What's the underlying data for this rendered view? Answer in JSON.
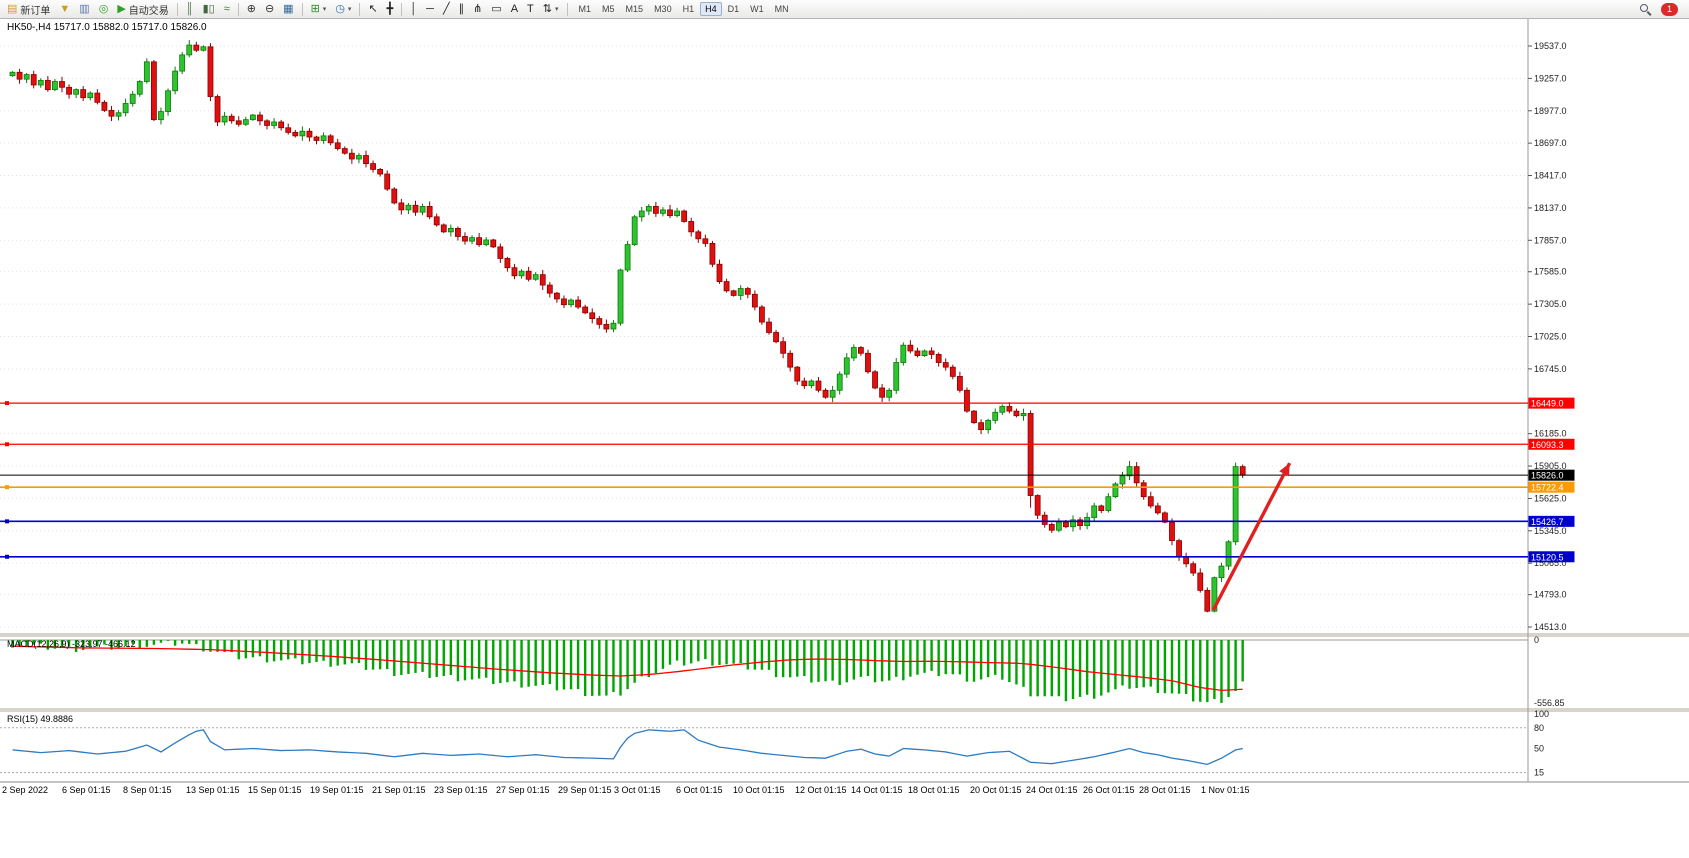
{
  "toolbar": {
    "buttons": [
      {
        "name": "new-order-button",
        "glyph": "▤",
        "color": "#d49a2a",
        "label": "新订单"
      },
      {
        "name": "funnel-icon-button",
        "glyph": "▼",
        "color": "#c8a020"
      },
      {
        "name": "printer-icon-button",
        "glyph": "▥",
        "color": "#5577aa"
      },
      {
        "name": "refresh-icon-button",
        "glyph": "◎",
        "color": "#33a033"
      },
      {
        "name": "autotrade-button",
        "glyph": "▶",
        "color": "#2e9e2e",
        "label": "自动交易"
      },
      {
        "sep": true
      },
      {
        "name": "bar-chart-button",
        "glyph": "║",
        "color": "#557755"
      },
      {
        "name": "candlestick-button",
        "glyph": "▮▯",
        "color": "#446644"
      },
      {
        "name": "line-chart-button",
        "glyph": "≈",
        "color": "#447744"
      },
      {
        "sep": true
      },
      {
        "name": "zoom-in-button",
        "glyph": "⊕",
        "color": "#333333"
      },
      {
        "name": "zoom-out-button",
        "glyph": "⊖",
        "color": "#333333"
      },
      {
        "name": "tile-windows-button",
        "glyph": "▦",
        "color": "#336699"
      },
      {
        "sep": true
      },
      {
        "name": "indicators-button",
        "glyph": "⊞",
        "color": "#2e8b2e",
        "caret": true
      },
      {
        "name": "periods-button",
        "glyph": "◷",
        "color": "#2e6bb0",
        "caret": true
      },
      {
        "sep": true
      },
      {
        "name": "cursor-button",
        "glyph": "↖",
        "color": "#222222"
      },
      {
        "name": "crosshair-button",
        "glyph": "╋",
        "color": "#222222"
      },
      {
        "sep": true
      },
      {
        "name": "vertical-line-button",
        "glyph": "│",
        "color": "#222222"
      },
      {
        "name": "horizontal-line-button",
        "glyph": "─",
        "color": "#222222"
      },
      {
        "name": "trendline-button",
        "glyph": "╱",
        "color": "#222222"
      },
      {
        "name": "equidistant-channel-button",
        "glyph": "∥",
        "color": "#222222"
      },
      {
        "name": "fibonacci-button",
        "glyph": "⋔",
        "color": "#222222"
      },
      {
        "name": "shapes-button",
        "glyph": "▭",
        "color": "#222222"
      },
      {
        "name": "text-button",
        "glyph": "A",
        "color": "#222222"
      },
      {
        "name": "label-button",
        "glyph": "T",
        "color": "#222222"
      },
      {
        "name": "arrows-button",
        "glyph": "⇅",
        "color": "#222222",
        "caret": true
      },
      {
        "sep": true
      }
    ],
    "timeframes": [
      "M1",
      "M5",
      "M15",
      "M30",
      "H1",
      "H4",
      "D1",
      "W1",
      "MN"
    ],
    "active_timeframe": "H4",
    "notification_count": "1"
  },
  "chart": {
    "symbol_tf": "HK50-,H4",
    "ohlc_text": "15717.0 15882.0 15717.0 15826.0"
  },
  "chart_data": {
    "type": "candlestick",
    "title": "HK50- H4 chart with MACD and RSI",
    "symbol": "HK50-",
    "timeframe": "H4",
    "current_bar": {
      "open": 15717.0,
      "high": 15882.0,
      "low": 15717.0,
      "close": 15826.0
    },
    "colors": {
      "up": "#2fc42f",
      "up_stroke": "#0a7a0a",
      "down": "#e01010",
      "down_stroke": "#8a0000",
      "hist": "#00a600",
      "signal": "#ff0000",
      "rsi": "#2e7bc4",
      "arrow": "#e02020"
    },
    "price_axis": {
      "ticks": [
        19537.0,
        19257.0,
        18977.0,
        18697.0,
        18417.0,
        18137.0,
        17857.0,
        17585.0,
        17305.0,
        17025.0,
        16745.0,
        16185.0,
        15905.0,
        15625.0,
        15345.0,
        15065.0,
        14793.0,
        14513.0
      ]
    },
    "hlines": [
      {
        "price": 16449.0,
        "label": "16449.0",
        "color": "#ff0000",
        "width": 1.2
      },
      {
        "price": 16093.3,
        "label": "16093.3",
        "color": "#ff0000",
        "width": 1.2
      },
      {
        "price": 15826.0,
        "label": "15826.0",
        "color": "#000000",
        "width": 1.0,
        "current": true
      },
      {
        "price": 15722.4,
        "label": "15722.4",
        "color": "#ff9900",
        "width": 1.6
      },
      {
        "price": 15426.7,
        "label": "15426.7",
        "color": "#0000cc",
        "width": 1.6
      },
      {
        "price": 15120.5,
        "label": "15120.5",
        "color": "#0000cc",
        "width": 1.6
      }
    ],
    "closes": [
      19310,
      19250,
      19290,
      19200,
      19240,
      19160,
      19230,
      19180,
      19120,
      19160,
      19090,
      19130,
      19050,
      18980,
      18930,
      18960,
      19040,
      19120,
      19230,
      19400,
      18900,
      18970,
      19150,
      19320,
      19460,
      19545,
      19500,
      19530,
      19100,
      18880,
      18930,
      18890,
      18860,
      18900,
      18940,
      18890,
      18850,
      18880,
      18830,
      18790,
      18760,
      18800,
      18750,
      18720,
      18760,
      18700,
      18650,
      18610,
      18560,
      18590,
      18520,
      18470,
      18430,
      18300,
      18180,
      18120,
      18160,
      18100,
      18150,
      18060,
      17990,
      17930,
      17960,
      17890,
      17850,
      17880,
      17820,
      17860,
      17800,
      17700,
      17620,
      17550,
      17590,
      17520,
      17560,
      17470,
      17400,
      17350,
      17300,
      17340,
      17280,
      17230,
      17180,
      17130,
      17090,
      17140,
      17600,
      17820,
      18060,
      18110,
      18150,
      18090,
      18120,
      18070,
      18110,
      18020,
      17930,
      17870,
      17830,
      17650,
      17500,
      17420,
      17380,
      17440,
      17390,
      17280,
      17150,
      17060,
      16980,
      16880,
      16760,
      16640,
      16600,
      16640,
      16560,
      16500,
      16560,
      16700,
      16840,
      16930,
      16880,
      16720,
      16580,
      16500,
      16560,
      16800,
      16950,
      16900,
      16860,
      16900,
      16870,
      16800,
      16760,
      16680,
      16560,
      16380,
      16280,
      16220,
      16300,
      16370,
      16420,
      16380,
      16340,
      16360,
      15650,
      15480,
      15400,
      15350,
      15420,
      15380,
      15440,
      15390,
      15460,
      15560,
      15520,
      15640,
      15750,
      15820,
      15900,
      15760,
      15640,
      15560,
      15500,
      15420,
      15260,
      15120,
      15060,
      14980,
      14830,
      14650,
      14940,
      15040,
      15250,
      15900,
      15826
    ],
    "high_overrides": {
      "158": 15950,
      "173": 15935
    },
    "low_overrides": {
      "169": 14640,
      "144": 15545
    },
    "arrow": {
      "from_idx": 170.2,
      "from_price": 14660,
      "to_idx": 181,
      "to_price": 15930
    },
    "dates": [
      [
        "2 Sep 2022",
        2
      ],
      [
        "6 Sep 01:15",
        62
      ],
      [
        "8 Sep 01:15",
        123
      ],
      [
        "13 Sep 01:15",
        186
      ],
      [
        "15 Sep 01:15",
        248
      ],
      [
        "19 Sep 01:15",
        310
      ],
      [
        "21 Sep 01:15",
        372
      ],
      [
        "23 Sep 01:15",
        434
      ],
      [
        "27 Sep 01:15",
        496
      ],
      [
        "29 Sep 01:15",
        558
      ],
      [
        "3 Oct 01:15",
        614
      ],
      [
        "6 Oct 01:15",
        676
      ],
      [
        "10 Oct 01:15",
        733
      ],
      [
        "12 Oct 01:15",
        795
      ],
      [
        "14 Oct 01:15",
        851
      ],
      [
        "18 Oct 01:15",
        908
      ],
      [
        "20 Oct 01:15",
        970
      ],
      [
        "24 Oct 01:15",
        1026
      ],
      [
        "26 Oct 01:15",
        1083
      ],
      [
        "28 Oct 01:15",
        1139
      ],
      [
        "1 Nov 01:15",
        1201
      ]
    ],
    "macd": {
      "label": "MACD(12,26,9) -323.97 -466.12",
      "axis_ticks": [
        "0",
        "-556.85"
      ],
      "min": -556.85,
      "hist_anchors": [
        [
          0,
          -40
        ],
        [
          8,
          -80
        ],
        [
          16,
          -60
        ],
        [
          24,
          -25
        ],
        [
          28,
          -90
        ],
        [
          32,
          -150
        ],
        [
          40,
          -190
        ],
        [
          48,
          -220
        ],
        [
          54,
          -290
        ],
        [
          62,
          -330
        ],
        [
          70,
          -380
        ],
        [
          78,
          -430
        ],
        [
          84,
          -505
        ],
        [
          86,
          -470
        ],
        [
          90,
          -300
        ],
        [
          94,
          -210
        ],
        [
          98,
          -190
        ],
        [
          104,
          -240
        ],
        [
          110,
          -330
        ],
        [
          116,
          -380
        ],
        [
          120,
          -340
        ],
        [
          124,
          -365
        ],
        [
          127,
          -310
        ],
        [
          132,
          -295
        ],
        [
          136,
          -355
        ],
        [
          140,
          -330
        ],
        [
          144,
          -470
        ],
        [
          148,
          -525
        ],
        [
          152,
          -505
        ],
        [
          156,
          -450
        ],
        [
          158,
          -410
        ],
        [
          162,
          -440
        ],
        [
          166,
          -505
        ],
        [
          169,
          -556
        ],
        [
          171,
          -530
        ],
        [
          173,
          -450
        ],
        [
          174,
          -380
        ]
      ],
      "signal_anchors": [
        [
          0,
          -55
        ],
        [
          10,
          -70
        ],
        [
          20,
          -75
        ],
        [
          28,
          -85
        ],
        [
          36,
          -110
        ],
        [
          44,
          -140
        ],
        [
          52,
          -175
        ],
        [
          60,
          -215
        ],
        [
          68,
          -255
        ],
        [
          76,
          -290
        ],
        [
          82,
          -310
        ],
        [
          86,
          -318
        ],
        [
          90,
          -305
        ],
        [
          94,
          -280
        ],
        [
          98,
          -250
        ],
        [
          102,
          -220
        ],
        [
          106,
          -195
        ],
        [
          110,
          -175
        ],
        [
          114,
          -168
        ],
        [
          118,
          -172
        ],
        [
          122,
          -182
        ],
        [
          126,
          -190
        ],
        [
          130,
          -188
        ],
        [
          134,
          -192
        ],
        [
          138,
          -200
        ],
        [
          142,
          -205
        ],
        [
          144,
          -215
        ],
        [
          148,
          -245
        ],
        [
          152,
          -280
        ],
        [
          156,
          -305
        ],
        [
          160,
          -330
        ],
        [
          164,
          -360
        ],
        [
          168,
          -420
        ],
        [
          171,
          -445
        ],
        [
          174,
          -435
        ]
      ]
    },
    "rsi": {
      "label": "RSI(15) 49.8886",
      "axis_ticks": [
        "100",
        "80",
        "50",
        "15"
      ],
      "levels": [
        80,
        15
      ],
      "anchors": [
        [
          0,
          48
        ],
        [
          4,
          44
        ],
        [
          8,
          47
        ],
        [
          12,
          42
        ],
        [
          16,
          46
        ],
        [
          19,
          55
        ],
        [
          21,
          45
        ],
        [
          23,
          58
        ],
        [
          25,
          70
        ],
        [
          26,
          75
        ],
        [
          27,
          77
        ],
        [
          28,
          60
        ],
        [
          30,
          48
        ],
        [
          34,
          50
        ],
        [
          38,
          47
        ],
        [
          42,
          48
        ],
        [
          46,
          45
        ],
        [
          50,
          43
        ],
        [
          54,
          38
        ],
        [
          58,
          43
        ],
        [
          62,
          40
        ],
        [
          66,
          42
        ],
        [
          70,
          38
        ],
        [
          74,
          41
        ],
        [
          78,
          37
        ],
        [
          82,
          36
        ],
        [
          85,
          35
        ],
        [
          86,
          52
        ],
        [
          87,
          65
        ],
        [
          88,
          72
        ],
        [
          90,
          77
        ],
        [
          93,
          75
        ],
        [
          95,
          77
        ],
        [
          97,
          62
        ],
        [
          100,
          52
        ],
        [
          103,
          48
        ],
        [
          106,
          43
        ],
        [
          109,
          40
        ],
        [
          112,
          37
        ],
        [
          115,
          36
        ],
        [
          118,
          46
        ],
        [
          120,
          49
        ],
        [
          122,
          42
        ],
        [
          124,
          39
        ],
        [
          126,
          50
        ],
        [
          129,
          48
        ],
        [
          132,
          45
        ],
        [
          135,
          39
        ],
        [
          138,
          44
        ],
        [
          141,
          46
        ],
        [
          144,
          30
        ],
        [
          147,
          28
        ],
        [
          150,
          33
        ],
        [
          153,
          38
        ],
        [
          156,
          45
        ],
        [
          158,
          50
        ],
        [
          160,
          44
        ],
        [
          162,
          41
        ],
        [
          164,
          36
        ],
        [
          166,
          33
        ],
        [
          168,
          29
        ],
        [
          169,
          27
        ],
        [
          171,
          36
        ],
        [
          173,
          48
        ],
        [
          174,
          49.89
        ]
      ]
    }
  }
}
